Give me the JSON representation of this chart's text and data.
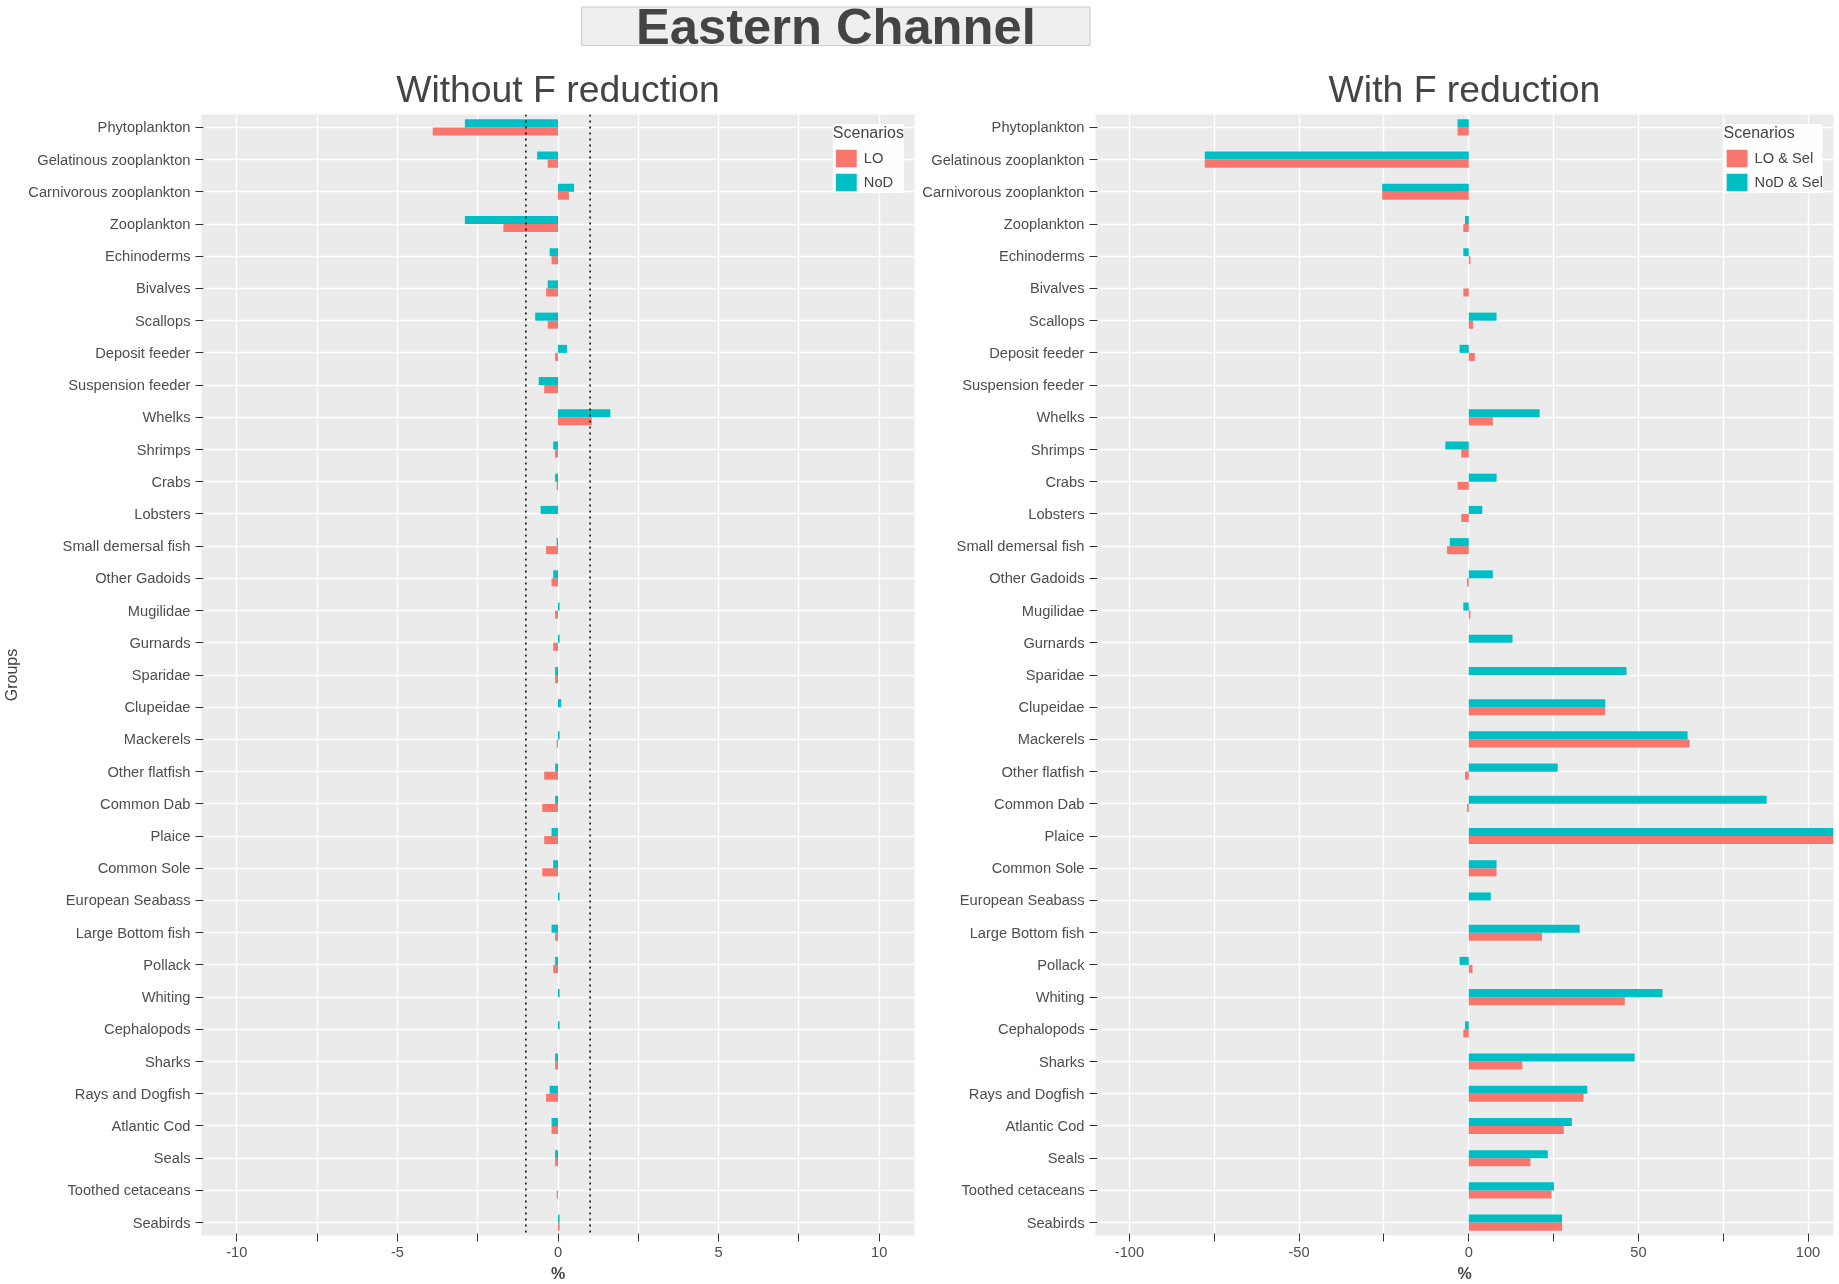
{
  "chart_data": [
    {
      "type": "other",
      "title": "Eastern Channel"
    },
    {
      "type": "bar",
      "orientation": "horizontal",
      "title": "Without F reduction",
      "xlabel": "%",
      "ylabel": "Groups",
      "categories": [
        "Phytoplankton",
        "Gelatinous zooplankton",
        "Carnivorous zooplankton",
        "Zooplankton",
        "Echinoderms",
        "Bivalves",
        "Scallops",
        "Deposit feeder",
        "Suspension feeder",
        "Whelks",
        "Shrimps",
        "Crabs",
        "Lobsters",
        "Small demersal fish",
        "Other Gadoids",
        "Mugilidae",
        "Gurnards",
        "Sparidae",
        "Clupeidae",
        "Mackerels",
        "Other flatfish",
        "Common Dab",
        "Plaice",
        "Common Sole",
        "European Seabass",
        "Large Bottom fish",
        "Pollack",
        "Whiting",
        "Cephalopods",
        "Sharks",
        "Rays and Dogfish",
        "Atlantic Cod",
        "Seals",
        "Toothed cetaceans",
        "Seabirds"
      ],
      "series": [
        {
          "name": "LO",
          "color": "#f8766d",
          "values": [
            -3.9,
            -0.32,
            0.34,
            -1.7,
            -0.2,
            -0.37,
            -0.32,
            -0.09,
            -0.43,
            1.05,
            -0.09,
            -0.04,
            0,
            -0.37,
            -0.2,
            -0.09,
            -0.15,
            -0.09,
            0,
            -0.04,
            -0.43,
            -0.49,
            -0.43,
            -0.49,
            0,
            -0.09,
            -0.15,
            0,
            0,
            -0.09,
            -0.37,
            -0.2,
            -0.09,
            -0.04,
            0.05
          ]
        },
        {
          "name": "NoD",
          "color": "#00bfc4",
          "values": [
            -2.9,
            -0.65,
            0.5,
            -2.9,
            -0.26,
            -0.32,
            -0.71,
            0.28,
            -0.6,
            1.63,
            -0.15,
            -0.09,
            -0.54,
            -0.04,
            -0.15,
            0.05,
            0.05,
            -0.09,
            0.1,
            0.05,
            -0.09,
            -0.09,
            -0.2,
            -0.15,
            0.05,
            -0.2,
            -0.09,
            0.05,
            0.05,
            -0.09,
            -0.26,
            -0.2,
            -0.09,
            0,
            0.05
          ]
        }
      ],
      "xlim": [
        -11.1,
        11.1
      ],
      "xticks": [
        -10,
        {
          "value": -7.5,
          "label": null
        },
        -5,
        {
          "value": -2.5,
          "label": null
        },
        0,
        {
          "value": 2.5,
          "label": null
        },
        5,
        {
          "value": 7.5,
          "label": null
        },
        10
      ],
      "ref_lines": [
        {
          "axis": "x",
          "value": -1,
          "color": "#000000",
          "line_style": "dotted"
        },
        {
          "axis": "x",
          "value": 1,
          "color": "#000000",
          "line_style": "dotted"
        }
      ],
      "legend_title": "Scenarios",
      "legend": "top right",
      "grid": true
    },
    {
      "type": "bar",
      "orientation": "horizontal",
      "title": "With F reduction",
      "xlabel": "%",
      "categories": [
        "Phytoplankton",
        "Gelatinous zooplankton",
        "Carnivorous zooplankton",
        "Zooplankton",
        "Echinoderms",
        "Bivalves",
        "Scallops",
        "Deposit feeder",
        "Suspension feeder",
        "Whelks",
        "Shrimps",
        "Crabs",
        "Lobsters",
        "Small demersal fish",
        "Other Gadoids",
        "Mugilidae",
        "Gurnards",
        "Sparidae",
        "Clupeidae",
        "Mackerels",
        "Other flatfish",
        "Common Dab",
        "Plaice",
        "Common Sole",
        "European Seabass",
        "Large Bottom fish",
        "Pollack",
        "Whiting",
        "Cephalopods",
        "Sharks",
        "Rays and Dogfish",
        "Atlantic Cod",
        "Seals",
        "Toothed cetaceans",
        "Seabirds"
      ],
      "series": [
        {
          "name": "LO & Sel",
          "color": "#f8766d",
          "values": [
            -3.3,
            -77.8,
            -25.5,
            -1.6,
            0.5,
            -1.6,
            1.3,
            1.8,
            0,
            7.1,
            -2.2,
            -3.3,
            -2.2,
            -6.4,
            -0.5,
            0.5,
            0,
            0,
            40.2,
            65.1,
            -1.1,
            -0.5,
            107.5,
            8.2,
            0,
            21.6,
            1.1,
            46,
            -1.6,
            15.8,
            33.8,
            28,
            18.2,
            24.4,
            27.5
          ]
        },
        {
          "name": "NoD & Sel",
          "color": "#00bfc4",
          "values": [
            -3.3,
            -77.8,
            -25.5,
            -1.1,
            -1.6,
            0,
            8.2,
            -2.7,
            0,
            20.9,
            -6.9,
            8.2,
            4,
            -5.6,
            7.1,
            -1.6,
            12.9,
            46.5,
            40.2,
            64.5,
            26.2,
            87.8,
            107.5,
            8.2,
            6.5,
            32.7,
            -2.7,
            57.1,
            -1.1,
            48.9,
            34.9,
            30.4,
            23.3,
            25.1,
            27.5
          ]
        }
      ],
      "xlim": [
        -110,
        107.5
      ],
      "xticks": [
        -100,
        {
          "value": -75,
          "label": null
        },
        -50,
        {
          "value": -25,
          "label": null
        },
        0,
        {
          "value": 25,
          "label": null
        },
        50,
        {
          "value": 75,
          "label": null
        },
        100
      ],
      "legend_title": "Scenarios",
      "legend": "top right",
      "grid": true
    }
  ]
}
